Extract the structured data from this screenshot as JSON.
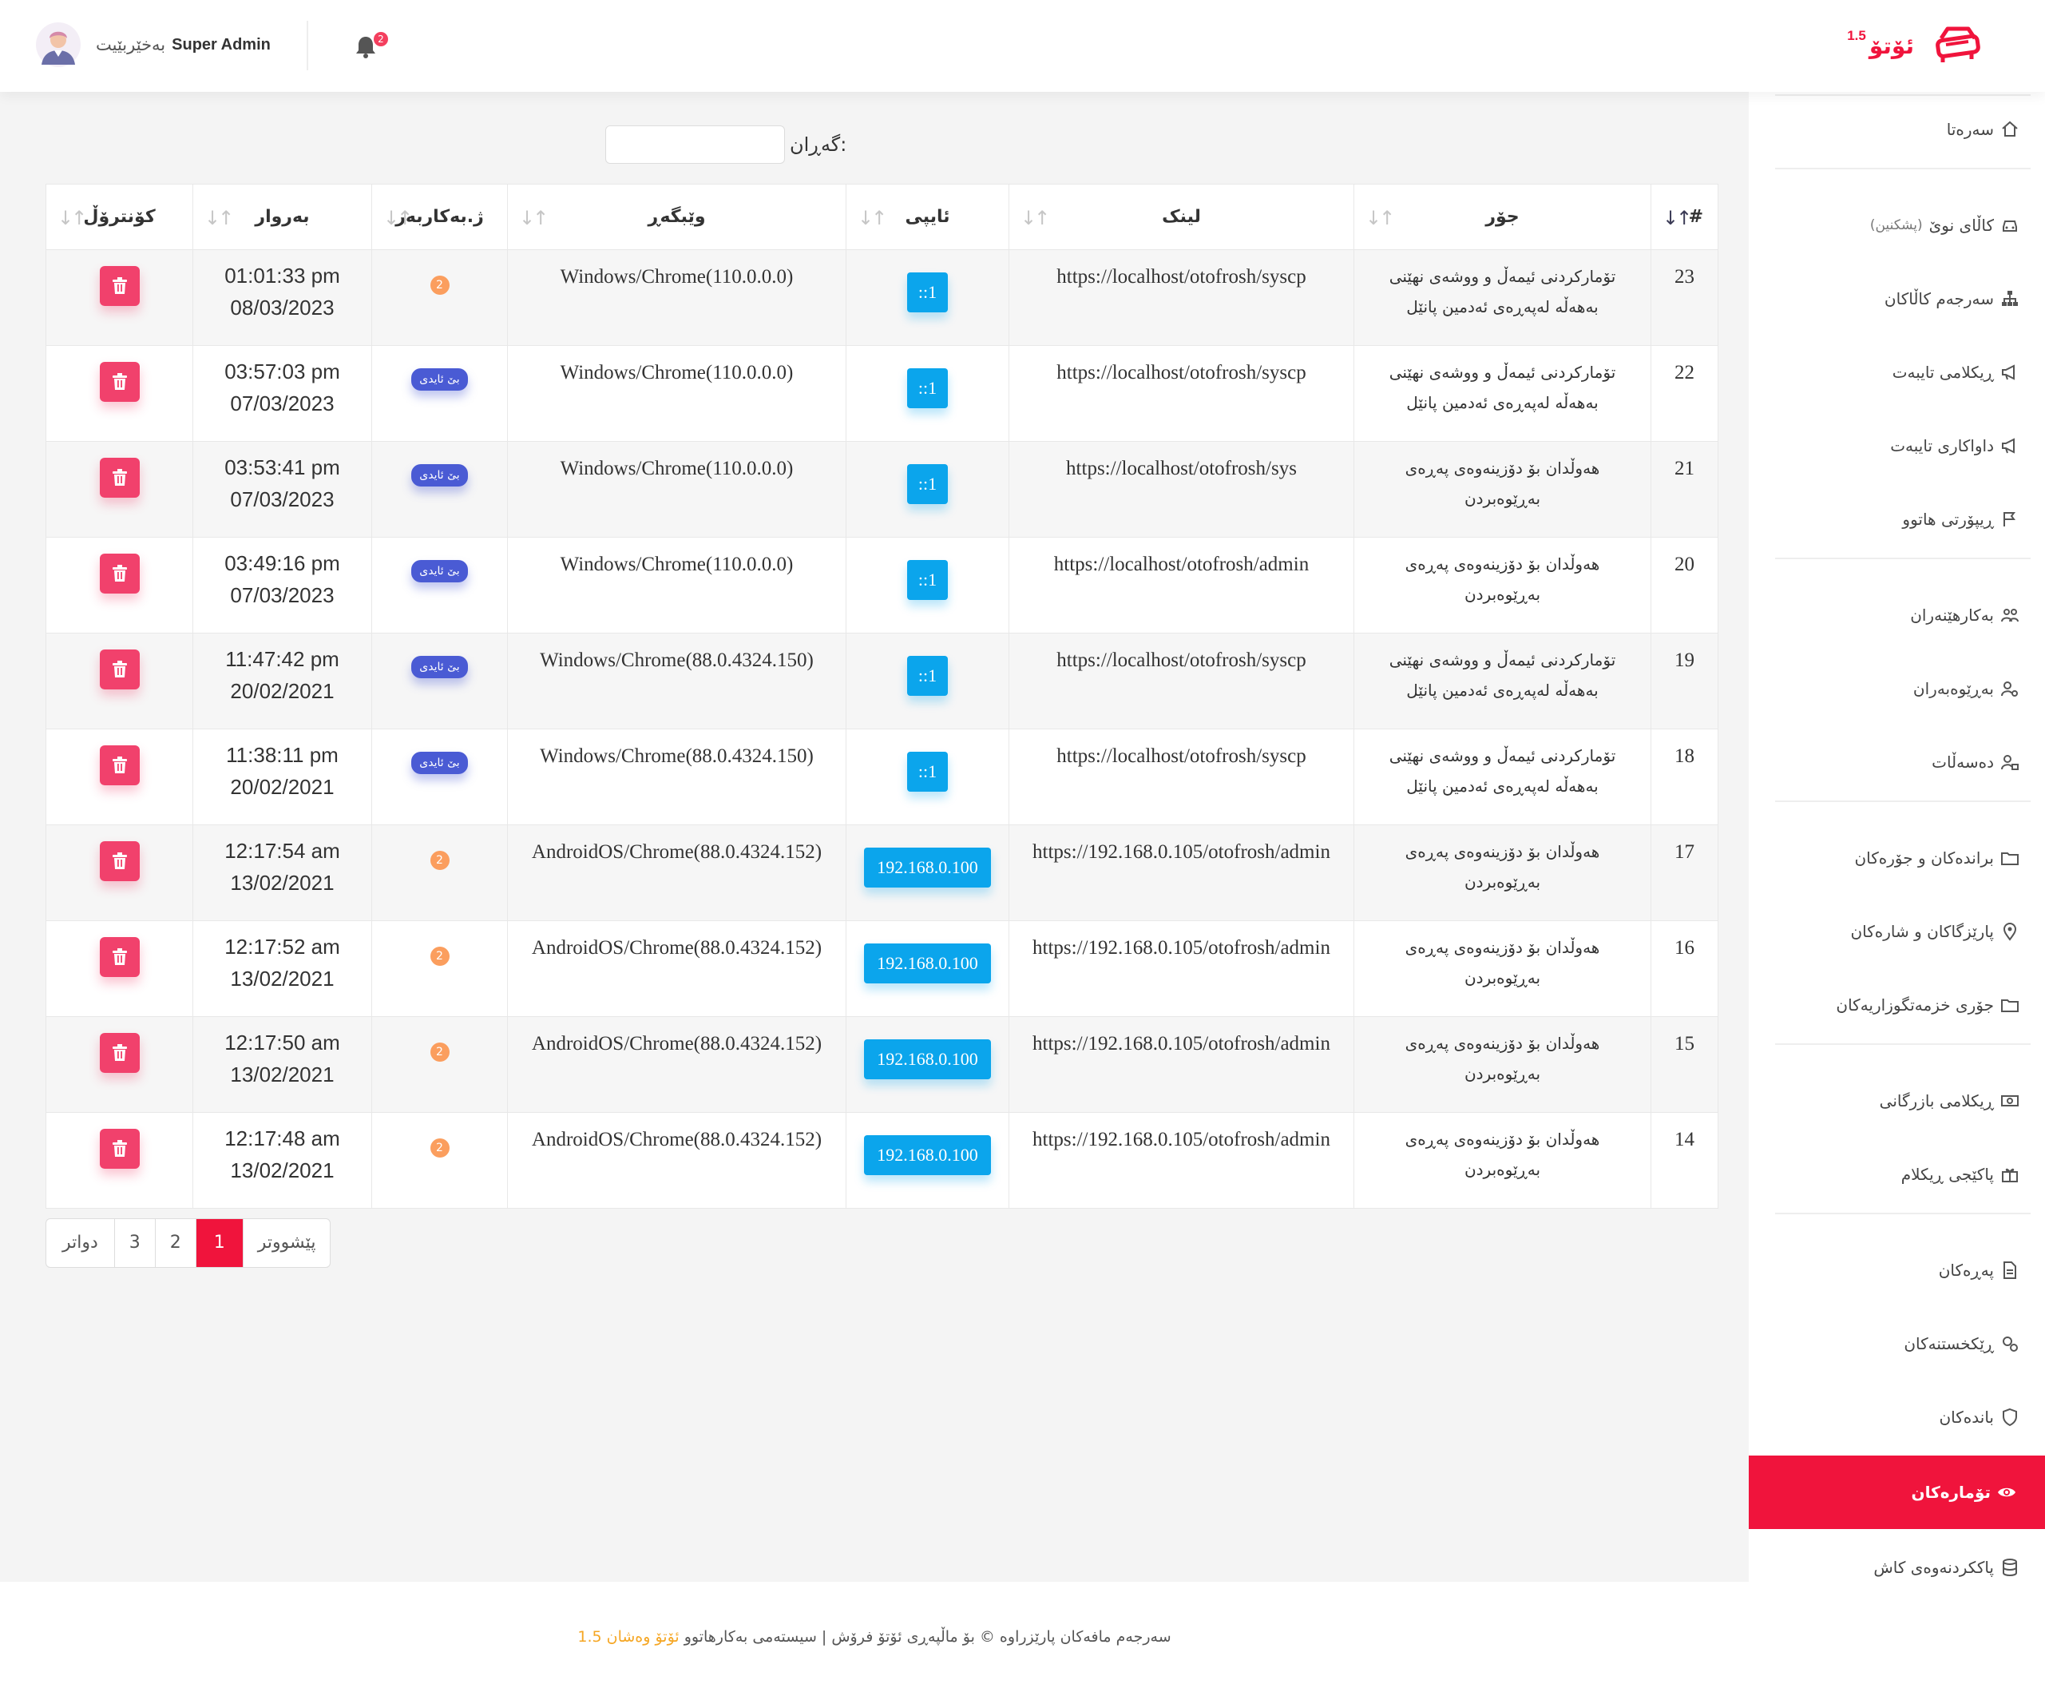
{
  "header": {
    "user_name": "Super Admin",
    "welcome": "بەخێربێیت",
    "notification_count": "2",
    "brand_name": "ئۆتۆ",
    "brand_version": "1.5"
  },
  "search": {
    "label": "گەڕان:",
    "value": ""
  },
  "table": {
    "columns": [
      "#",
      "جۆر",
      "لینک",
      "ئایپی",
      "وێبگەڕ",
      "ژ.بەکاربەر",
      "بەروار",
      "کۆنترۆڵ"
    ],
    "rows": [
      {
        "id": "23",
        "type_line1": "تۆمارکردنی ئیمەڵ و ووشەی نهێنی",
        "type_line2": "بەهەڵە لەپەڕەی ئەدمین پانێل",
        "link": "https://localhost/otofrosh/syscp",
        "ip": "::1",
        "browser": "Windows/Chrome(110.0.0.0)",
        "user_count": "2",
        "new_label": "",
        "time": "01:01:33 pm",
        "date": "08/03/2023"
      },
      {
        "id": "22",
        "type_line1": "تۆمارکردنی ئیمەڵ و ووشەی نهێنی",
        "type_line2": "بەهەڵە لەپەڕەی ئەدمین پانێل",
        "link": "https://localhost/otofrosh/syscp",
        "ip": "::1",
        "browser": "Windows/Chrome(110.0.0.0)",
        "user_count": "",
        "new_label": "بێ ئایدی",
        "time": "03:57:03 pm",
        "date": "07/03/2023"
      },
      {
        "id": "21",
        "type_line1": "هەوڵدان بۆ دۆزینەوەی پەڕەی",
        "type_line2": "بەڕێوەبردن",
        "link": "https://localhost/otofrosh/sys",
        "ip": "::1",
        "browser": "Windows/Chrome(110.0.0.0)",
        "user_count": "",
        "new_label": "بێ ئایدی",
        "time": "03:53:41 pm",
        "date": "07/03/2023"
      },
      {
        "id": "20",
        "type_line1": "هەوڵدان بۆ دۆزینەوەی پەڕەی",
        "type_line2": "بەڕێوەبردن",
        "link": "https://localhost/otofrosh/admin",
        "ip": "::1",
        "browser": "Windows/Chrome(110.0.0.0)",
        "user_count": "",
        "new_label": "بێ ئایدی",
        "time": "03:49:16 pm",
        "date": "07/03/2023"
      },
      {
        "id": "19",
        "type_line1": "تۆمارکردنی ئیمەڵ و ووشەی نهێنی",
        "type_line2": "بەهەڵە لەپەڕەی ئەدمین پانێل",
        "link": "https://localhost/otofrosh/syscp",
        "ip": "::1",
        "browser": "Windows/Chrome(88.0.4324.150)",
        "user_count": "",
        "new_label": "بێ ئایدی",
        "time": "11:47:42 pm",
        "date": "20/02/2021"
      },
      {
        "id": "18",
        "type_line1": "تۆمارکردنی ئیمەڵ و ووشەی نهێنی",
        "type_line2": "بەهەڵە لەپەڕەی ئەدمین پانێل",
        "link": "https://localhost/otofrosh/syscp",
        "ip": "::1",
        "browser": "Windows/Chrome(88.0.4324.150)",
        "user_count": "",
        "new_label": "بێ ئایدی",
        "time": "11:38:11 pm",
        "date": "20/02/2021"
      },
      {
        "id": "17",
        "type_line1": "هەوڵدان بۆ دۆزینەوەی پەڕەی",
        "type_line2": "بەڕێوەبردن",
        "link": "https://192.168.0.105/otofrosh/admin",
        "ip": "192.168.0.100",
        "browser": "AndroidOS/Chrome(88.0.4324.152)",
        "user_count": "2",
        "new_label": "",
        "time": "12:17:54 am",
        "date": "13/02/2021"
      },
      {
        "id": "16",
        "type_line1": "هەوڵدان بۆ دۆزینەوەی پەڕەی",
        "type_line2": "بەڕێوەبردن",
        "link": "https://192.168.0.105/otofrosh/admin",
        "ip": "192.168.0.100",
        "browser": "AndroidOS/Chrome(88.0.4324.152)",
        "user_count": "2",
        "new_label": "",
        "time": "12:17:52 am",
        "date": "13/02/2021"
      },
      {
        "id": "15",
        "type_line1": "هەوڵدان بۆ دۆزینەوەی پەڕەی",
        "type_line2": "بەڕێوەبردن",
        "link": "https://192.168.0.105/otofrosh/admin",
        "ip": "192.168.0.100",
        "browser": "AndroidOS/Chrome(88.0.4324.152)",
        "user_count": "2",
        "new_label": "",
        "time": "12:17:50 am",
        "date": "13/02/2021"
      },
      {
        "id": "14",
        "type_line1": "هەوڵدان بۆ دۆزینەوەی پەڕەی",
        "type_line2": "بەڕێوەبردن",
        "link": "https://192.168.0.105/otofrosh/admin",
        "ip": "192.168.0.100",
        "browser": "AndroidOS/Chrome(88.0.4324.152)",
        "user_count": "2",
        "new_label": "",
        "time": "12:17:48 am",
        "date": "13/02/2021"
      }
    ]
  },
  "pagination": {
    "prev": "پێشووتر",
    "pages": [
      "1",
      "2",
      "3"
    ],
    "active_page": "1",
    "next": "دواتر"
  },
  "sidebar": {
    "items": [
      {
        "label": "سەرەتا",
        "icon": "home-icon",
        "sub": ""
      },
      {
        "label": "کاڵای نوێ",
        "icon": "car-icon",
        "sub": "(پشکنین)"
      },
      {
        "label": "سەرجەم کاڵاکان",
        "icon": "sitemap-icon",
        "sub": ""
      },
      {
        "label": "ڕیکلامی تایبەت",
        "icon": "megaphone-icon",
        "sub": ""
      },
      {
        "label": "داواکاری تایبەت",
        "icon": "megaphone-icon",
        "sub": ""
      },
      {
        "label": "ڕیپۆرتی هاتوو",
        "icon": "flag-icon",
        "sub": ""
      },
      {
        "label": "بەکارهێنەران",
        "icon": "users-icon",
        "sub": ""
      },
      {
        "label": "بەڕێوەبەران",
        "icon": "user-cog-icon",
        "sub": ""
      },
      {
        "label": "دەسەڵات",
        "icon": "user-lock-icon",
        "sub": ""
      },
      {
        "label": "براندەکان و جۆرەکان",
        "icon": "folder-icon",
        "sub": ""
      },
      {
        "label": "پارێزگاکان و شارەکان",
        "icon": "map-pin-icon",
        "sub": ""
      },
      {
        "label": "جۆری خزمەتگوزاریەکان",
        "icon": "folder-icon",
        "sub": ""
      },
      {
        "label": "ڕیکلامی بازرگانی",
        "icon": "money-icon",
        "sub": ""
      },
      {
        "label": "پاکێجی ڕیکلام",
        "icon": "gift-icon",
        "sub": ""
      },
      {
        "label": "پەڕەکان",
        "icon": "file-icon",
        "sub": ""
      },
      {
        "label": "ڕێکخستنەکان",
        "icon": "gears-icon",
        "sub": ""
      },
      {
        "label": "باندەکان",
        "icon": "shield-icon",
        "sub": ""
      },
      {
        "label": "تۆمارەکان",
        "icon": "eye-icon",
        "sub": ""
      },
      {
        "label": "پاککردنەوەی کاش",
        "icon": "database-icon",
        "sub": ""
      }
    ],
    "active_label": "تۆمارەکان"
  },
  "footer": {
    "text": "سەرجەم مافەکان پارێزراوە © بۆ ماڵپەڕی ئۆتۆ فرۆش | سیستەمی بەکارهاتوو",
    "version": "ئۆتۆ وەشان 1.5"
  },
  "colors": {
    "accent": "#f0143c",
    "ip_badge": "#0ba5ec",
    "count_badge": "#fb9e5e",
    "new_badge": "#4a5bd4",
    "delete_button": "#f1416c"
  }
}
